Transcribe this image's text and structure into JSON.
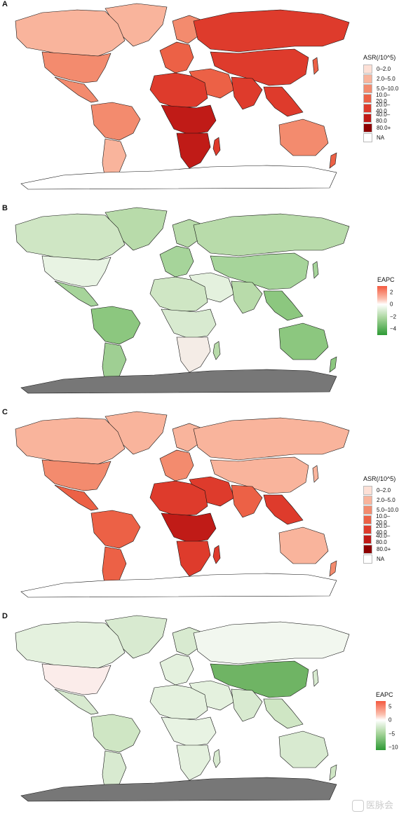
{
  "panels": [
    {
      "letter": "A",
      "type": "asr"
    },
    {
      "letter": "B",
      "type": "eapc"
    },
    {
      "letter": "C",
      "type": "asr"
    },
    {
      "letter": "D",
      "type": "eapc"
    }
  ],
  "asr_legend": {
    "title": "ASR(/10^5)",
    "items": [
      {
        "label": "0–2.0",
        "color": "#fde0d6"
      },
      {
        "label": "2.0–5.0",
        "color": "#f9b49c"
      },
      {
        "label": "5.0–10.0",
        "color": "#f38b6e"
      },
      {
        "label": "10.0–20.0",
        "color": "#ec6146"
      },
      {
        "label": "20.0–40.0",
        "color": "#de3b2c"
      },
      {
        "label": "40.0–80.0",
        "color": "#c01b17"
      },
      {
        "label": "80.0+",
        "color": "#8d0000"
      },
      {
        "label": "NA",
        "color": "#ffffff"
      }
    ]
  },
  "eapc_legend_b": {
    "title": "EAPC",
    "ticks": [
      "2",
      "0",
      "−2",
      "−4"
    ],
    "max": 3,
    "min": -5
  },
  "eapc_legend_d": {
    "title": "EAPC",
    "ticks": [
      "5",
      "0",
      "−5",
      "−10"
    ],
    "max": 7,
    "min": -11
  },
  "watermark": {
    "text": "医脉会"
  },
  "colors": {
    "antarctica_eapc": "#777777",
    "border": "#111111"
  }
}
